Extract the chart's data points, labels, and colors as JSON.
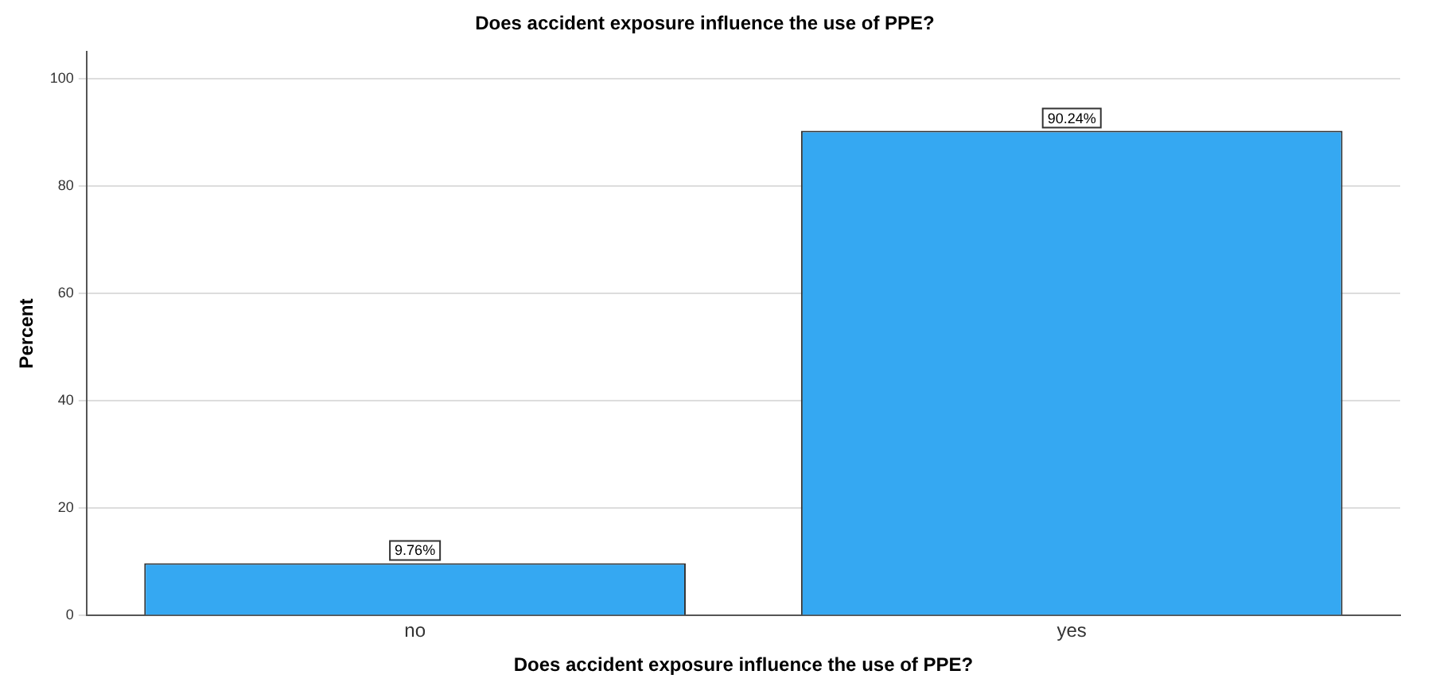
{
  "chart_data": {
    "type": "bar",
    "title": "Does accident exposure influence the use of PPE?",
    "xlabel": "Does accident exposure influence the use of PPE?",
    "ylabel": "Percent",
    "categories": [
      "no",
      "yes"
    ],
    "values": [
      9.76,
      90.24
    ],
    "value_labels": [
      "9.76%",
      "90.24%"
    ],
    "color": "#35a8f2",
    "ylim": [
      0,
      105
    ],
    "yticks": [
      0,
      20,
      40,
      60,
      80,
      100
    ],
    "grid": "y",
    "legend": false
  }
}
